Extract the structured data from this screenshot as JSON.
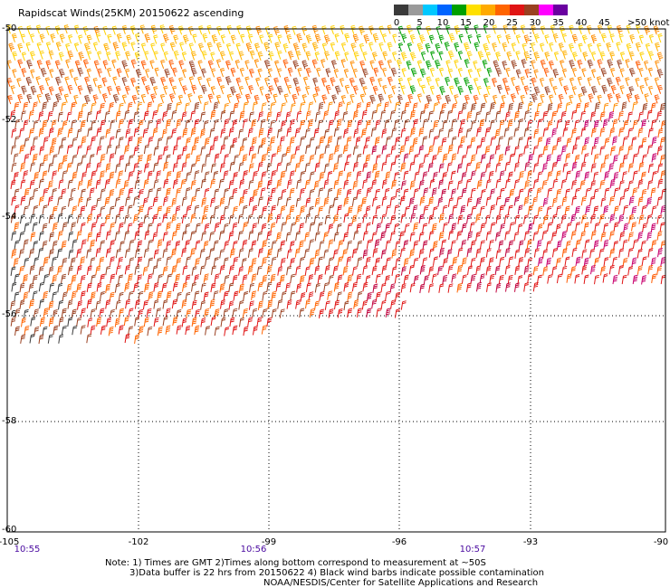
{
  "title": "Rapidscat Winds(25KM) 20150622 ascending",
  "colorbar": {
    "labels": [
      "0",
      "5",
      "10",
      "15",
      "20",
      "25",
      "30",
      "35",
      "40",
      "45",
      ">50 knots"
    ],
    "colors": [
      "#3a3a3a",
      "#9a9a9a",
      "#00c8ff",
      "#0064ff",
      "#00a000",
      "#ffe000",
      "#ffaa00",
      "#ff6400",
      "#e01414",
      "#9a4020",
      "#ff00ff",
      "#6a00a0"
    ]
  },
  "lat_labels": [
    "-50",
    "-52",
    "-54",
    "-56",
    "-58",
    "-60"
  ],
  "lon_labels": [
    "-105",
    "-102",
    "-99",
    "-96",
    "-93",
    "-90"
  ],
  "time_labels": [
    "10:55",
    "10:56",
    "10:57"
  ],
  "notes": {
    "line1": "Note: 1) Times are GMT 2)Times along bottom correspond to measurement at ~50S",
    "line2": "3)Data buffer is 22 hrs from 20150622 4) Black wind barbs indicate possible contamination",
    "line3": "NOAA/NESDIS/Center for Satellite Applications and Research"
  }
}
